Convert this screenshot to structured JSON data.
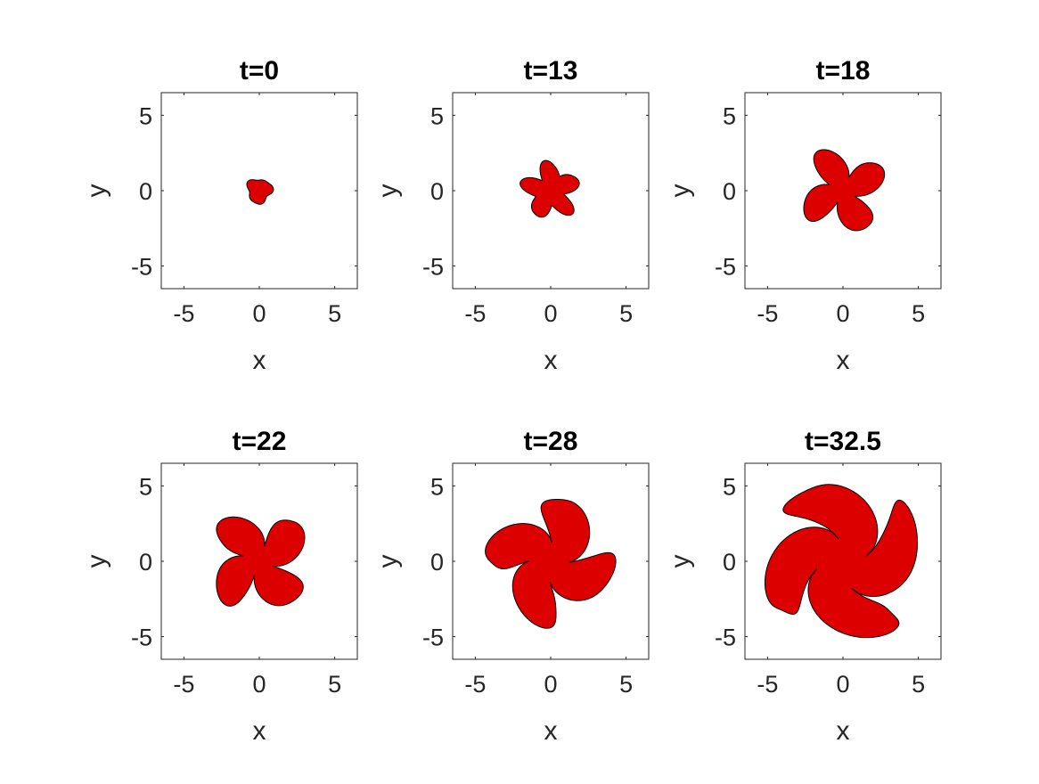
{
  "figure": {
    "colors": {
      "fill": "#dd0000",
      "edge": "#000000",
      "axis": "#262626",
      "background": "#ffffff"
    }
  },
  "chart_data": [
    {
      "type": "area",
      "title": "t=0",
      "xlabel": "x",
      "ylabel": "y",
      "xlim": [
        -6.5,
        6.5
      ],
      "ylim": [
        -6.5,
        6.5
      ],
      "xticks": [
        -5,
        0,
        5
      ],
      "yticks": [
        -5,
        0,
        5
      ],
      "xtick_labels": [
        "-5",
        "0",
        "5"
      ],
      "ytick_labels": [
        "-5",
        "0",
        "5"
      ],
      "grid": false,
      "shape": {
        "radius": 0.8,
        "lobes": 0,
        "lobe_length": 0,
        "arm_width": 0,
        "curl": 0,
        "rotation": 0
      }
    },
    {
      "type": "area",
      "title": "t=13",
      "xlabel": "x",
      "ylabel": "y",
      "xlim": [
        -6.5,
        6.5
      ],
      "ylim": [
        -6.5,
        6.5
      ],
      "xticks": [
        -5,
        0,
        5
      ],
      "yticks": [
        -5,
        0,
        5
      ],
      "xtick_labels": [
        "-5",
        "0",
        "5"
      ],
      "ytick_labels": [
        "-5",
        "0",
        "5"
      ],
      "grid": false,
      "shape": {
        "radius": 1.0,
        "lobes": 5,
        "lobe_length": 1.0,
        "arm_width": 0.8,
        "curl": 0.1,
        "rotation": 20
      }
    },
    {
      "type": "area",
      "title": "t=18",
      "xlabel": "x",
      "ylabel": "y",
      "xlim": [
        -6.5,
        6.5
      ],
      "ylim": [
        -6.5,
        6.5
      ],
      "xticks": [
        -5,
        0,
        5
      ],
      "yticks": [
        -5,
        0,
        5
      ],
      "xtick_labels": [
        "-5",
        "0",
        "5"
      ],
      "ytick_labels": [
        "-5",
        "0",
        "5"
      ],
      "grid": false,
      "shape": {
        "radius": 0.9,
        "lobes": 4,
        "lobe_length": 2.1,
        "arm_width": 1.0,
        "curl": 0.3,
        "rotation": 15
      }
    },
    {
      "type": "area",
      "title": "t=22",
      "xlabel": "x",
      "ylabel": "y",
      "xlim": [
        -6.5,
        6.5
      ],
      "ylim": [
        -6.5,
        6.5
      ],
      "xticks": [
        -5,
        0,
        5
      ],
      "yticks": [
        -5,
        0,
        5
      ],
      "xtick_labels": [
        "-5",
        "0",
        "5"
      ],
      "ytick_labels": [
        "-5",
        "0",
        "5"
      ],
      "grid": false,
      "shape": {
        "radius": 1.0,
        "lobes": 4,
        "lobe_length": 2.6,
        "arm_width": 1.3,
        "curl": 0.4,
        "rotation": 18
      }
    },
    {
      "type": "area",
      "title": "t=28",
      "xlabel": "x",
      "ylabel": "y",
      "xlim": [
        -6.5,
        6.5
      ],
      "ylim": [
        -6.5,
        6.5
      ],
      "xticks": [
        -5,
        0,
        5
      ],
      "yticks": [
        -5,
        0,
        5
      ],
      "xtick_labels": [
        "-5",
        "0",
        "5"
      ],
      "ytick_labels": [
        "-5",
        "0",
        "5"
      ],
      "grid": false,
      "shape": {
        "radius": 1.3,
        "lobes": 4,
        "lobe_length": 3.0,
        "arm_width": 1.6,
        "curl": 0.7,
        "rotation": 25
      }
    },
    {
      "type": "area",
      "title": "t=32.5",
      "xlabel": "x",
      "ylabel": "y",
      "xlim": [
        -6.5,
        6.5
      ],
      "ylim": [
        -6.5,
        6.5
      ],
      "xticks": [
        -5,
        0,
        5
      ],
      "yticks": [
        -5,
        0,
        5
      ],
      "xtick_labels": [
        "-5",
        "0",
        "5"
      ],
      "ytick_labels": [
        "-5",
        "0",
        "5"
      ],
      "grid": false,
      "shape": {
        "radius": 1.7,
        "lobes": 4,
        "lobe_length": 3.8,
        "arm_width": 2.0,
        "curl": 0.9,
        "rotation": 30
      }
    }
  ]
}
